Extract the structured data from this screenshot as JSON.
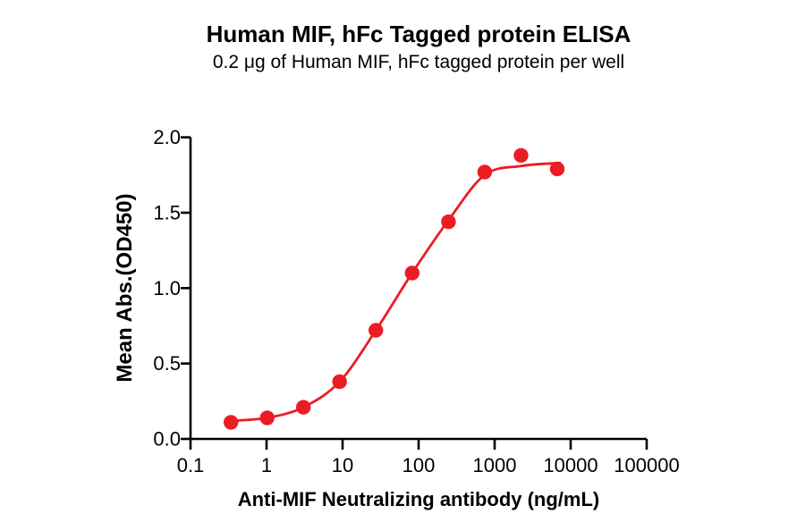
{
  "chart_data": {
    "type": "scatter",
    "title": "Human MIF, hFc Tagged protein ELISA",
    "subtitle": "0.2 μg of Human MIF, hFc tagged protein per well",
    "xlabel": "Anti-MIF Neutralizing antibody (ng/mL)",
    "ylabel": "Mean Abs.(OD450)",
    "x_scale": "log10",
    "xlim": [
      0.1,
      100000
    ],
    "ylim": [
      0.0,
      2.0
    ],
    "x_ticks": [
      "0.1",
      "1",
      "10",
      "100",
      "1000",
      "10000",
      "100000"
    ],
    "y_ticks": [
      "0.0",
      "0.5",
      "1.0",
      "1.5",
      "2.0"
    ],
    "grid": false,
    "legend": null,
    "marker_color": "#ec1c24",
    "curve_color": "#ec1c24",
    "axis_color": "#000000",
    "points": {
      "x": [
        0.34,
        1.02,
        3.05,
        9.14,
        27.4,
        82.3,
        247,
        741,
        2222,
        6667
      ],
      "y": [
        0.11,
        0.14,
        0.21,
        0.38,
        0.72,
        1.1,
        1.44,
        1.77,
        1.88,
        1.79
      ]
    },
    "fit_curve": {
      "model": "4PL sigmoidal dose-response",
      "x": [
        0.34,
        1.02,
        3.05,
        9.14,
        27.4,
        82.3,
        247,
        741,
        2222,
        7200
      ],
      "y": [
        0.12,
        0.14,
        0.21,
        0.38,
        0.72,
        1.1,
        1.45,
        1.75,
        1.81,
        1.83
      ]
    }
  }
}
